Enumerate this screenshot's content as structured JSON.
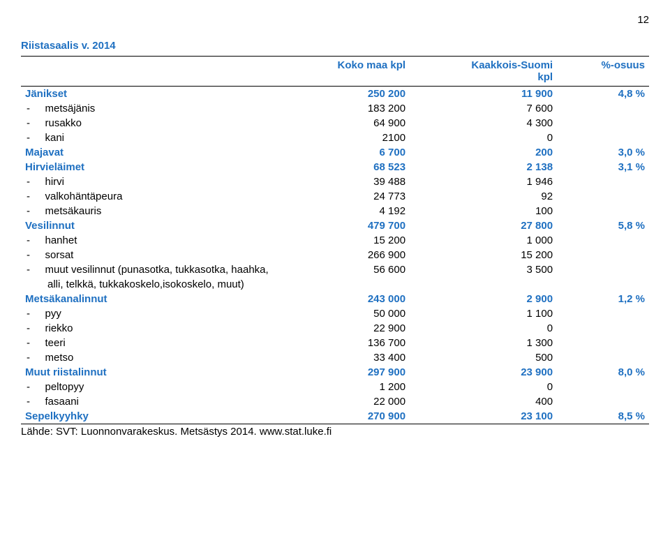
{
  "page_number": "12",
  "title": "Riistasaalis v. 2014",
  "headers": {
    "col1": "",
    "col2": "Koko maa kpl",
    "col3_line1": "Kaakkois-Suomi",
    "col3_line2": "kpl",
    "col4": "%-osuus"
  },
  "groups": [
    {
      "label": "Jänikset",
      "v1": "250 200",
      "v2": "11 900",
      "pct": "4,8 %",
      "subs": [
        {
          "label": "metsäjänis",
          "v1": "183 200",
          "v2": "7 600"
        },
        {
          "label": "rusakko",
          "v1": "64 900",
          "v2": "4 300"
        },
        {
          "label": "kani",
          "v1": "2100",
          "v2": "0"
        }
      ]
    },
    {
      "label": "Majavat",
      "v1": "6 700",
      "v2": "200",
      "pct": "3,0 %",
      "subs": []
    },
    {
      "label": "Hirvieläimet",
      "v1": "68 523",
      "v2": "2 138",
      "pct": "3,1 %",
      "subs": [
        {
          "label": "hirvi",
          "v1": "39 488",
          "v2": "1 946"
        },
        {
          "label": "valkohäntäpeura",
          "v1": "24 773",
          "v2": "92"
        },
        {
          "label": "metsäkauris",
          "v1": "4 192",
          "v2": "100"
        }
      ]
    },
    {
      "label": "Vesilinnut",
      "v1": "479 700",
      "v2": "27 800",
      "pct": "5,8 %",
      "subs": [
        {
          "label": "hanhet",
          "v1": "15 200",
          "v2": "1 000"
        },
        {
          "label": "sorsat",
          "v1": "266 900",
          "v2": "15 200"
        },
        {
          "label": "muut vesilinnut (punasotka, tukkasotka, haahka,",
          "v1": "56 600",
          "v2": "3 500",
          "cont": "alli, telkkä, tukkakoskelo,isokoskelo, muut)"
        }
      ]
    },
    {
      "label": "Metsäkanalinnut",
      "v1": "243 000",
      "v2": "2 900",
      "pct": "1,2 %",
      "subs": [
        {
          "label": "pyy",
          "v1": "50 000",
          "v2": "1 100"
        },
        {
          "label": "riekko",
          "v1": "22 900",
          "v2": "0"
        },
        {
          "label": "teeri",
          "v1": "136 700",
          "v2": "1 300"
        },
        {
          "label": "metso",
          "v1": "33 400",
          "v2": "500"
        }
      ]
    },
    {
      "label": "Muut riistalinnut",
      "v1": "297 900",
      "v2": "23 900",
      "pct": "8,0 %",
      "subs": [
        {
          "label": "peltopyy",
          "v1": "1 200",
          "v2": "0"
        },
        {
          "label": "fasaani",
          "v1": "22 000",
          "v2": "400"
        }
      ]
    },
    {
      "label": "Sepelkyyhky",
      "v1": "270 900",
      "v2": "23 100",
      "pct": "8,5 %",
      "subs": [],
      "last": true
    }
  ],
  "source": "Lähde: SVT: Luonnonvarakeskus. Metsästys 2014. www.stat.luke.fi"
}
